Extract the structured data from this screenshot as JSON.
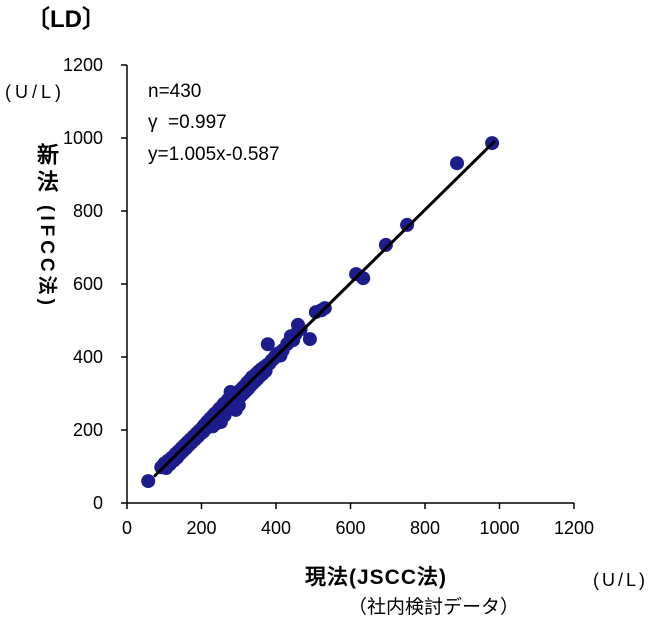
{
  "chart_data": {
    "type": "scatter",
    "title": "〔LD〕",
    "xlabel": "現法(JSCC法)",
    "xunit": "(U/L)",
    "ylabel": {
      "main": "新法",
      "sub": "(IFCC法)"
    },
    "yunit": "(U/L)",
    "note": "（社内検討データ）",
    "annotations": [
      "n=430",
      "γ  =0.997",
      "y=1.005x-0.587"
    ],
    "xlim": [
      0,
      1200
    ],
    "ylim": [
      0,
      1200
    ],
    "xticks": [
      0,
      200,
      400,
      600,
      800,
      1000,
      1200
    ],
    "yticks": [
      0,
      200,
      400,
      600,
      800,
      1000,
      1200
    ],
    "grid": false,
    "regression": {
      "slope": 1.005,
      "intercept": -0.587,
      "x_from": 75,
      "x_to": 985
    },
    "colors": {
      "points": "#1c1c8c",
      "line": "#000000",
      "axes": "#000000"
    },
    "points": [
      [
        57,
        60
      ],
      [
        92,
        98
      ],
      [
        100,
        108
      ],
      [
        105,
        96
      ],
      [
        110,
        116
      ],
      [
        115,
        106
      ],
      [
        120,
        124
      ],
      [
        125,
        116
      ],
      [
        130,
        134
      ],
      [
        134,
        124
      ],
      [
        138,
        142
      ],
      [
        142,
        134
      ],
      [
        146,
        150
      ],
      [
        150,
        142
      ],
      [
        154,
        158
      ],
      [
        158,
        150
      ],
      [
        162,
        166
      ],
      [
        166,
        158
      ],
      [
        170,
        174
      ],
      [
        174,
        166
      ],
      [
        178,
        182
      ],
      [
        182,
        174
      ],
      [
        186,
        190
      ],
      [
        190,
        182
      ],
      [
        194,
        198
      ],
      [
        198,
        190
      ],
      [
        202,
        206
      ],
      [
        205,
        196
      ],
      [
        208,
        214
      ],
      [
        212,
        204
      ],
      [
        215,
        222
      ],
      [
        218,
        212
      ],
      [
        222,
        230
      ],
      [
        225,
        220
      ],
      [
        228,
        236
      ],
      [
        230,
        210
      ],
      [
        232,
        226
      ],
      [
        235,
        244
      ],
      [
        238,
        232
      ],
      [
        240,
        218
      ],
      [
        242,
        250
      ],
      [
        245,
        238
      ],
      [
        248,
        258
      ],
      [
        250,
        244
      ],
      [
        252,
        222
      ],
      [
        255,
        264
      ],
      [
        258,
        250
      ],
      [
        260,
        272
      ],
      [
        262,
        240
      ],
      [
        265,
        258
      ],
      [
        268,
        278
      ],
      [
        270,
        262
      ],
      [
        272,
        284
      ],
      [
        275,
        268
      ],
      [
        278,
        304
      ],
      [
        280,
        274
      ],
      [
        283,
        290
      ],
      [
        285,
        262
      ],
      [
        287,
        278
      ],
      [
        290,
        296
      ],
      [
        292,
        255
      ],
      [
        294,
        284
      ],
      [
        297,
        302
      ],
      [
        300,
        268
      ],
      [
        302,
        290
      ],
      [
        305,
        310
      ],
      [
        308,
        296
      ],
      [
        311,
        316
      ],
      [
        314,
        302
      ],
      [
        317,
        322
      ],
      [
        320,
        308
      ],
      [
        323,
        330
      ],
      [
        326,
        314
      ],
      [
        329,
        336
      ],
      [
        332,
        322
      ],
      [
        335,
        344
      ],
      [
        338,
        328
      ],
      [
        341,
        348
      ],
      [
        344,
        334
      ],
      [
        347,
        354
      ],
      [
        350,
        340
      ],
      [
        353,
        360
      ],
      [
        357,
        348
      ],
      [
        360,
        366
      ],
      [
        364,
        354
      ],
      [
        368,
        372
      ],
      [
        372,
        362
      ],
      [
        376,
        378
      ],
      [
        378,
        435
      ],
      [
        382,
        382
      ],
      [
        388,
        390
      ],
      [
        394,
        396
      ],
      [
        400,
        405
      ],
      [
        406,
        410
      ],
      [
        412,
        404
      ],
      [
        418,
        418
      ],
      [
        430,
        436
      ],
      [
        440,
        457
      ],
      [
        446,
        446
      ],
      [
        452,
        462
      ],
      [
        459,
        488
      ],
      [
        466,
        476
      ],
      [
        491,
        449
      ],
      [
        507,
        523
      ],
      [
        522,
        528
      ],
      [
        531,
        534
      ],
      [
        615,
        627
      ],
      [
        634,
        616
      ],
      [
        695,
        707
      ],
      [
        752,
        762
      ],
      [
        886,
        931
      ],
      [
        980,
        986
      ]
    ]
  }
}
